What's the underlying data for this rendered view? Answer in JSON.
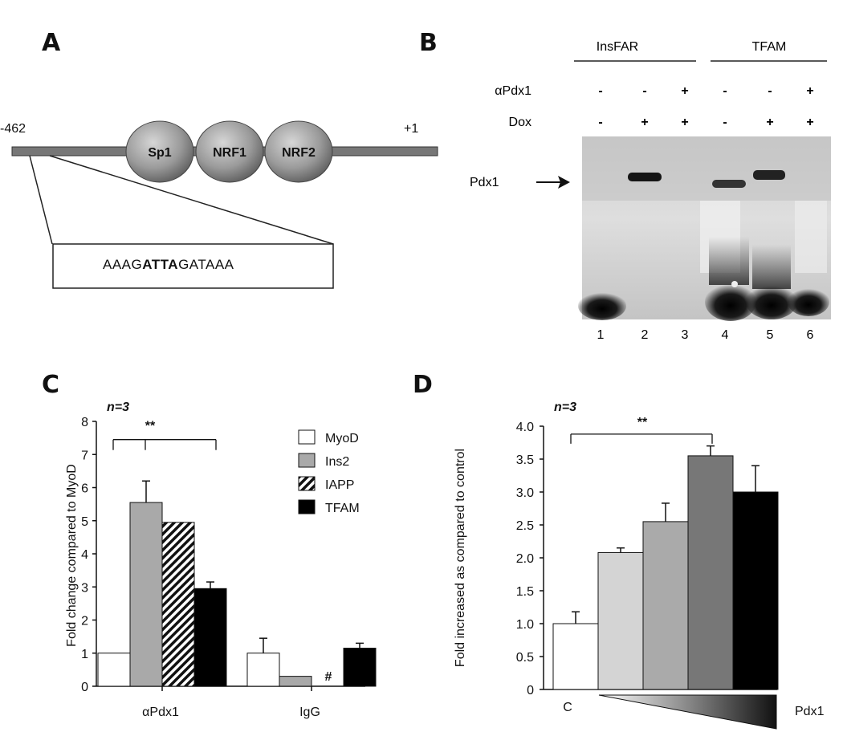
{
  "panel_labels": {
    "a": "A",
    "b": "B",
    "c": "C",
    "d": "D"
  },
  "panel_a": {
    "left_pos": "-462",
    "right_pos": "+1",
    "elements": [
      "Sp1",
      "NRF1",
      "NRF2"
    ],
    "seq_pre": "AAAG",
    "seq_bold": "ATTA",
    "seq_post": "GATAAA"
  },
  "panel_b": {
    "probes": [
      "InsFAR",
      "TFAM"
    ],
    "row_labels": [
      "αPdx1",
      "Dox"
    ],
    "conditions": {
      "apdx1": [
        "-",
        "-",
        "+",
        "-",
        "-",
        "+"
      ],
      "dox": [
        "-",
        "+",
        "+",
        "-",
        "+",
        "+"
      ]
    },
    "band_label": "Pdx1",
    "lanes": [
      "1",
      "2",
      "3",
      "4",
      "5",
      "6"
    ]
  },
  "chart_data": [
    {
      "type": "bar",
      "panel": "C",
      "n_label": "n=3",
      "significance": "**",
      "hash_mark": "#",
      "ylabel": "Fold change compared to MyoD",
      "ylim": [
        0,
        8
      ],
      "yticks": [
        "0",
        "1",
        "2",
        "3",
        "4",
        "5",
        "6",
        "7",
        "8"
      ],
      "categories": [
        "αPdx1",
        "IgG"
      ],
      "series": [
        {
          "name": "MyoD",
          "values": [
            1.0,
            1.0
          ],
          "errors": [
            0,
            0.45
          ],
          "color": "#ffffff"
        },
        {
          "name": "Ins2",
          "values": [
            5.55,
            0.3
          ],
          "errors": [
            0.65,
            0
          ],
          "color": "#a9a9a9"
        },
        {
          "name": "IAPP",
          "values": [
            4.95,
            0
          ],
          "errors": [
            0,
            0
          ],
          "color": "hatch"
        },
        {
          "name": "TFAM",
          "values": [
            2.95,
            1.15
          ],
          "errors": [
            0.2,
            0.15
          ],
          "color": "#000000"
        }
      ]
    },
    {
      "type": "bar",
      "panel": "D",
      "n_label": "n=3",
      "significance": "**",
      "ylabel": "Fold increased as compared to control",
      "ylim": [
        0,
        4
      ],
      "yticks": [
        "0",
        "0.5",
        "1.0",
        "1.5",
        "2.0",
        "2.5",
        "3.0",
        "3.5",
        "4.0"
      ],
      "x_left_label": "C",
      "x_right_label": "Pdx1",
      "values": [
        1.0,
        2.08,
        2.55,
        3.55,
        3.0
      ],
      "errors": [
        0.18,
        0.07,
        0.28,
        0.15,
        0.4
      ],
      "colors": [
        "#ffffff",
        "#d4d4d4",
        "#aaaaaa",
        "#777777",
        "#000000"
      ]
    }
  ]
}
